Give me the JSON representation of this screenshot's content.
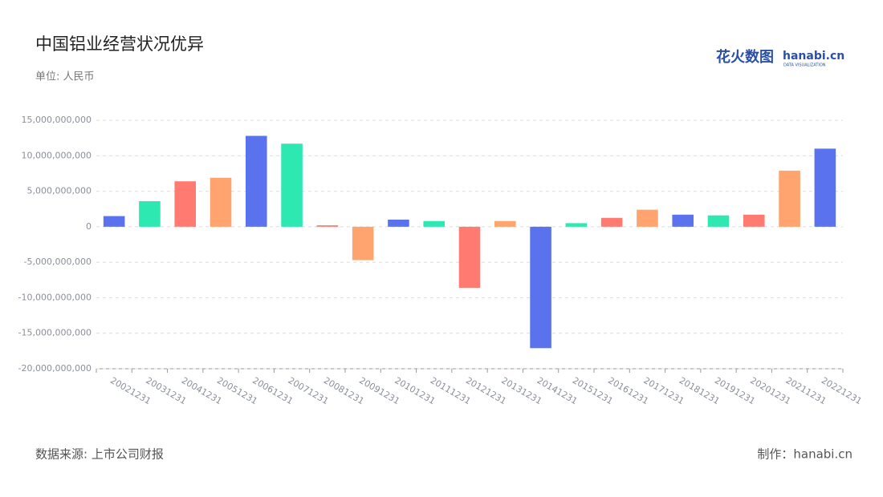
{
  "chart_data": {
    "type": "bar",
    "title": "中国铝业经营状况优异",
    "subtitle": "单位: 人民币",
    "source": "数据来源: 上市公司财报",
    "credit": "制作：hanabi.cn",
    "logo": {
      "brand": "花火数图",
      "site": "hanabi.cn",
      "tagline": "DATA VISUALIZATION"
    },
    "categories": [
      "20021231",
      "20031231",
      "20041231",
      "20051231",
      "20061231",
      "20071231",
      "20081231",
      "20091231",
      "20101231",
      "20111231",
      "20121231",
      "20131231",
      "20141231",
      "20151231",
      "20161231",
      "20171231",
      "20181231",
      "20191231",
      "20201231",
      "20211231",
      "20221231"
    ],
    "values": [
      1500000000,
      3600000000,
      6400000000,
      6900000000,
      12800000000,
      11700000000,
      200000000,
      -4700000000,
      1000000000,
      800000000,
      -8600000000,
      800000000,
      -17100000000,
      500000000,
      1250000000,
      2400000000,
      1700000000,
      1600000000,
      1700000000,
      7900000000,
      11000000000
    ],
    "palette": [
      "#5b72ee",
      "#2de8b0",
      "#ff7b72",
      "#ffa36f"
    ],
    "ylim": [
      -20000000000,
      15000000000
    ],
    "yticks": [
      {
        "value": -20000000000,
        "label": "-20,000,000,000"
      },
      {
        "value": -15000000000,
        "label": "-15,000,000,000"
      },
      {
        "value": -10000000000,
        "label": "-10,000,000,000"
      },
      {
        "value": -5000000000,
        "label": "-5,000,000,000"
      },
      0,
      {
        "value": 5000000000,
        "label": "5,000,000,000"
      },
      {
        "value": 10000000000,
        "label": "10,000,000,000"
      },
      {
        "value": 15000000000,
        "label": "15,000,000,000"
      }
    ],
    "grid": true
  }
}
